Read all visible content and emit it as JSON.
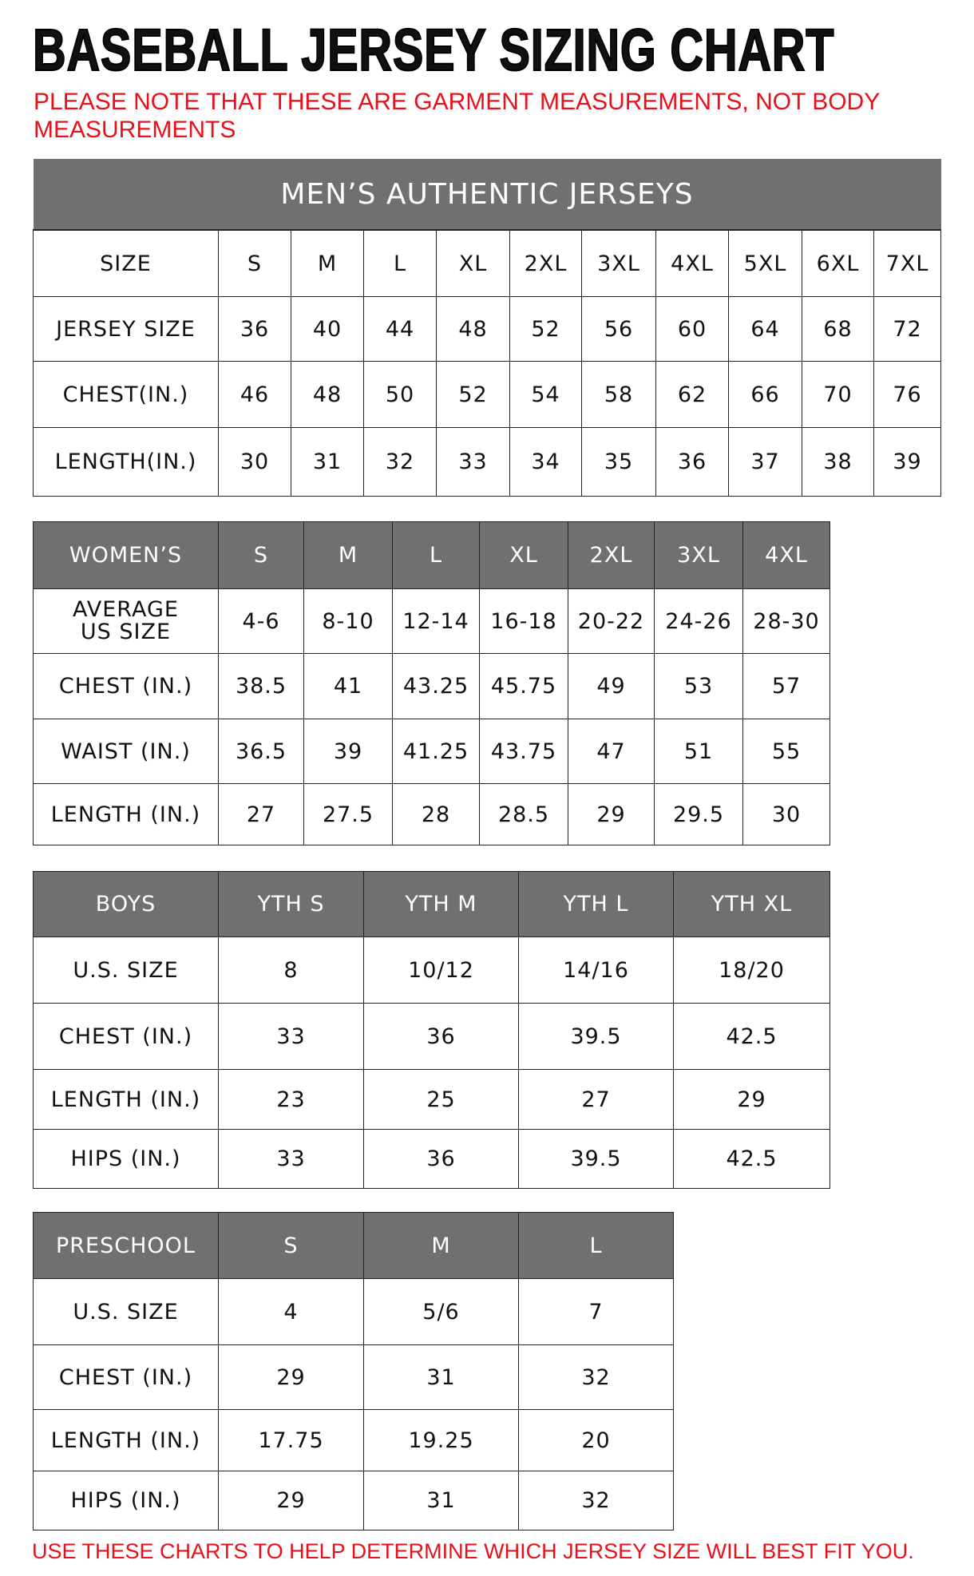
{
  "title": "BASEBALL JERSEY SIZING CHART",
  "note": "PLEASE NOTE THAT THESE ARE GARMENT MEASUREMENTS, NOT BODY MEASUREMENTS",
  "footer": "USE THESE CHARTS TO HELP DETERMINE WHICH JERSEY SIZE WILL BEST FIT YOU.",
  "colors": {
    "header_bg": "#707070",
    "note_red": "#e8101b"
  },
  "tables": [
    {
      "id": "mens",
      "banner": "MEN’S AUTHENTIC JERSEYS",
      "header": [
        "SIZE",
        "S",
        "M",
        "L",
        "XL",
        "2XL",
        "3XL",
        "4XL",
        "5XL",
        "6XL",
        "7XL"
      ],
      "header_style": "plain",
      "rows": [
        [
          "JERSEY SIZE",
          "36",
          "40",
          "44",
          "48",
          "52",
          "56",
          "60",
          "64",
          "68",
          "72"
        ],
        [
          "CHEST(IN.)",
          "46",
          "48",
          "50",
          "52",
          "54",
          "58",
          "62",
          "66",
          "70",
          "76"
        ],
        [
          "LENGTH(IN.)",
          "30",
          "31",
          "32",
          "33",
          "34",
          "35",
          "36",
          "37",
          "38",
          "39"
        ]
      ]
    },
    {
      "id": "womens",
      "header": [
        "WOMEN’S",
        "S",
        "M",
        "L",
        "XL",
        "2XL",
        "3XL",
        "4XL"
      ],
      "header_style": "grey",
      "rows": [
        [
          "AVERAGE US SIZE",
          "4-6",
          "8-10",
          "12-14",
          "16-18",
          "20-22",
          "24-26",
          "28-30"
        ],
        [
          "CHEST (IN.)",
          "38.5",
          "41",
          "43.25",
          "45.75",
          "49",
          "53",
          "57"
        ],
        [
          "WAIST (IN.)",
          "36.5",
          "39",
          "41.25",
          "43.75",
          "47",
          "51",
          "55"
        ],
        [
          "LENGTH (IN.)",
          "27",
          "27.5",
          "28",
          "28.5",
          "29",
          "29.5",
          "30"
        ]
      ]
    },
    {
      "id": "boys",
      "header": [
        "BOYS",
        "YTH S",
        "YTH M",
        "YTH L",
        "YTH XL"
      ],
      "header_style": "grey",
      "rows": [
        [
          "U.S. SIZE",
          "8",
          "10/12",
          "14/16",
          "18/20"
        ],
        [
          "CHEST (IN.)",
          "33",
          "36",
          "39.5",
          "42.5"
        ],
        [
          "LENGTH (IN.)",
          "23",
          "25",
          "27",
          "29"
        ],
        [
          "HIPS (IN.)",
          "33",
          "36",
          "39.5",
          "42.5"
        ]
      ]
    },
    {
      "id": "preschool",
      "header": [
        "PRESCHOOL",
        "S",
        "M",
        "L"
      ],
      "header_style": "grey",
      "rows": [
        [
          "U.S. SIZE",
          "4",
          "5/6",
          "7"
        ],
        [
          "CHEST (IN.)",
          "29",
          "31",
          "32"
        ],
        [
          "LENGTH (IN.)",
          "17.75",
          "19.25",
          "20"
        ],
        [
          "HIPS (IN.)",
          "29",
          "31",
          "32"
        ]
      ]
    }
  ]
}
